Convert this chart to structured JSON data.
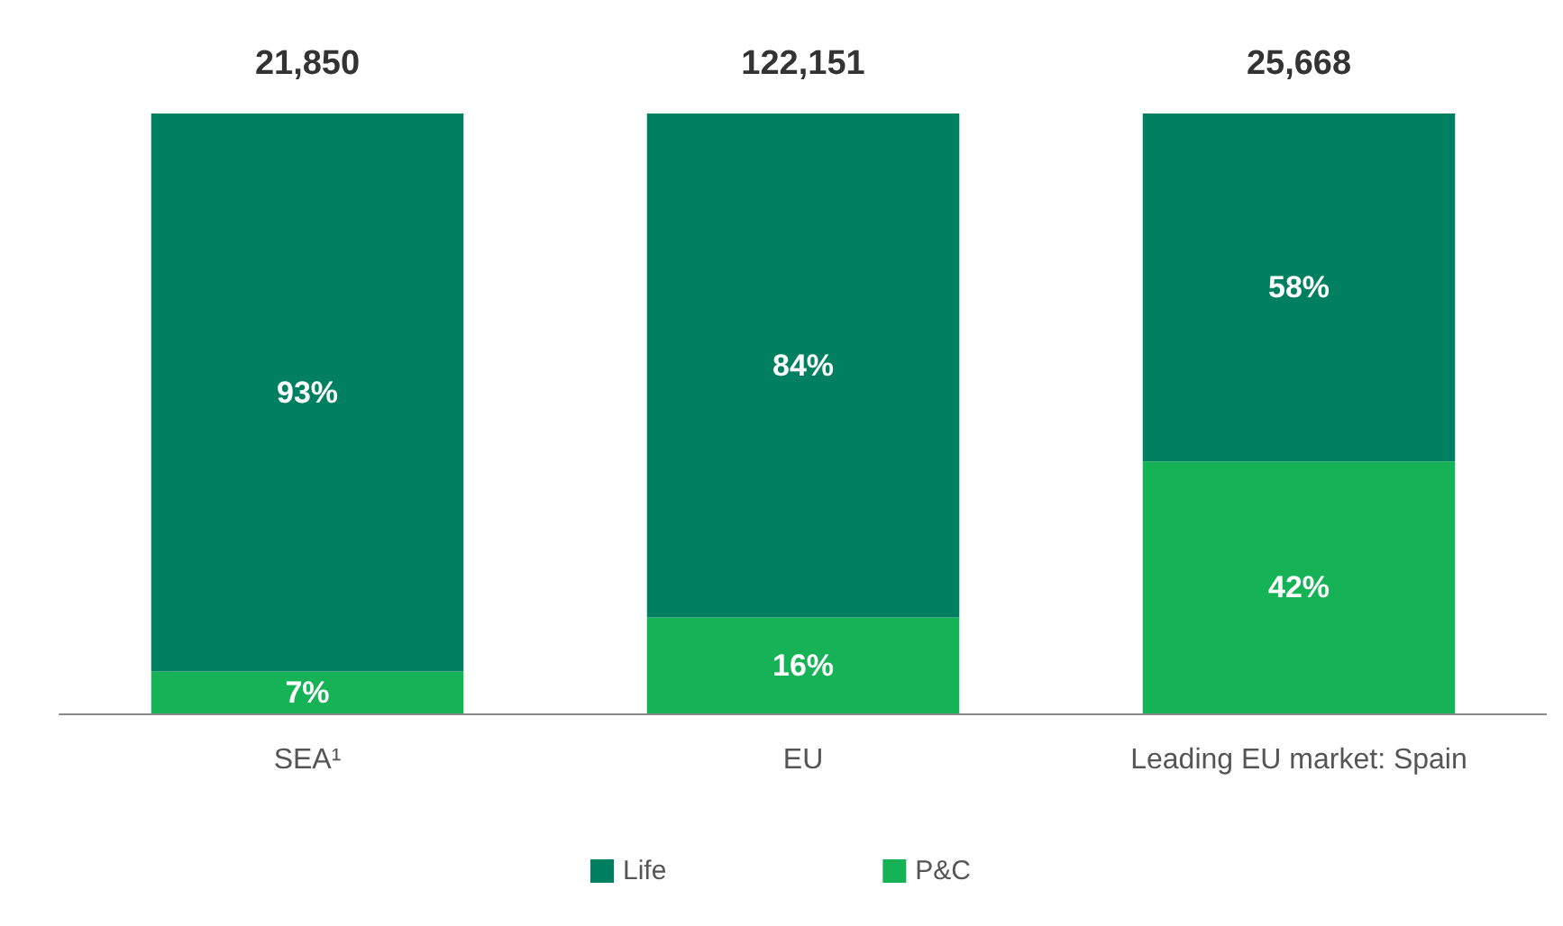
{
  "chart_data": {
    "type": "bar",
    "stacked": true,
    "categories": [
      "SEA¹",
      "EU",
      "Leading EU market: Spain"
    ],
    "series": [
      {
        "name": "P&C",
        "color": "#15b256",
        "values": [
          7,
          16,
          42
        ],
        "value_labels": [
          "7%",
          "16%",
          "42%"
        ]
      },
      {
        "name": "Life",
        "color": "#008060",
        "values": [
          93,
          84,
          58
        ],
        "value_labels": [
          "93%",
          "84%",
          "58%"
        ]
      }
    ],
    "annotations": [
      "21,850",
      "122,151",
      "25,668"
    ],
    "legend": "bottom",
    "tick_labels": "x"
  }
}
